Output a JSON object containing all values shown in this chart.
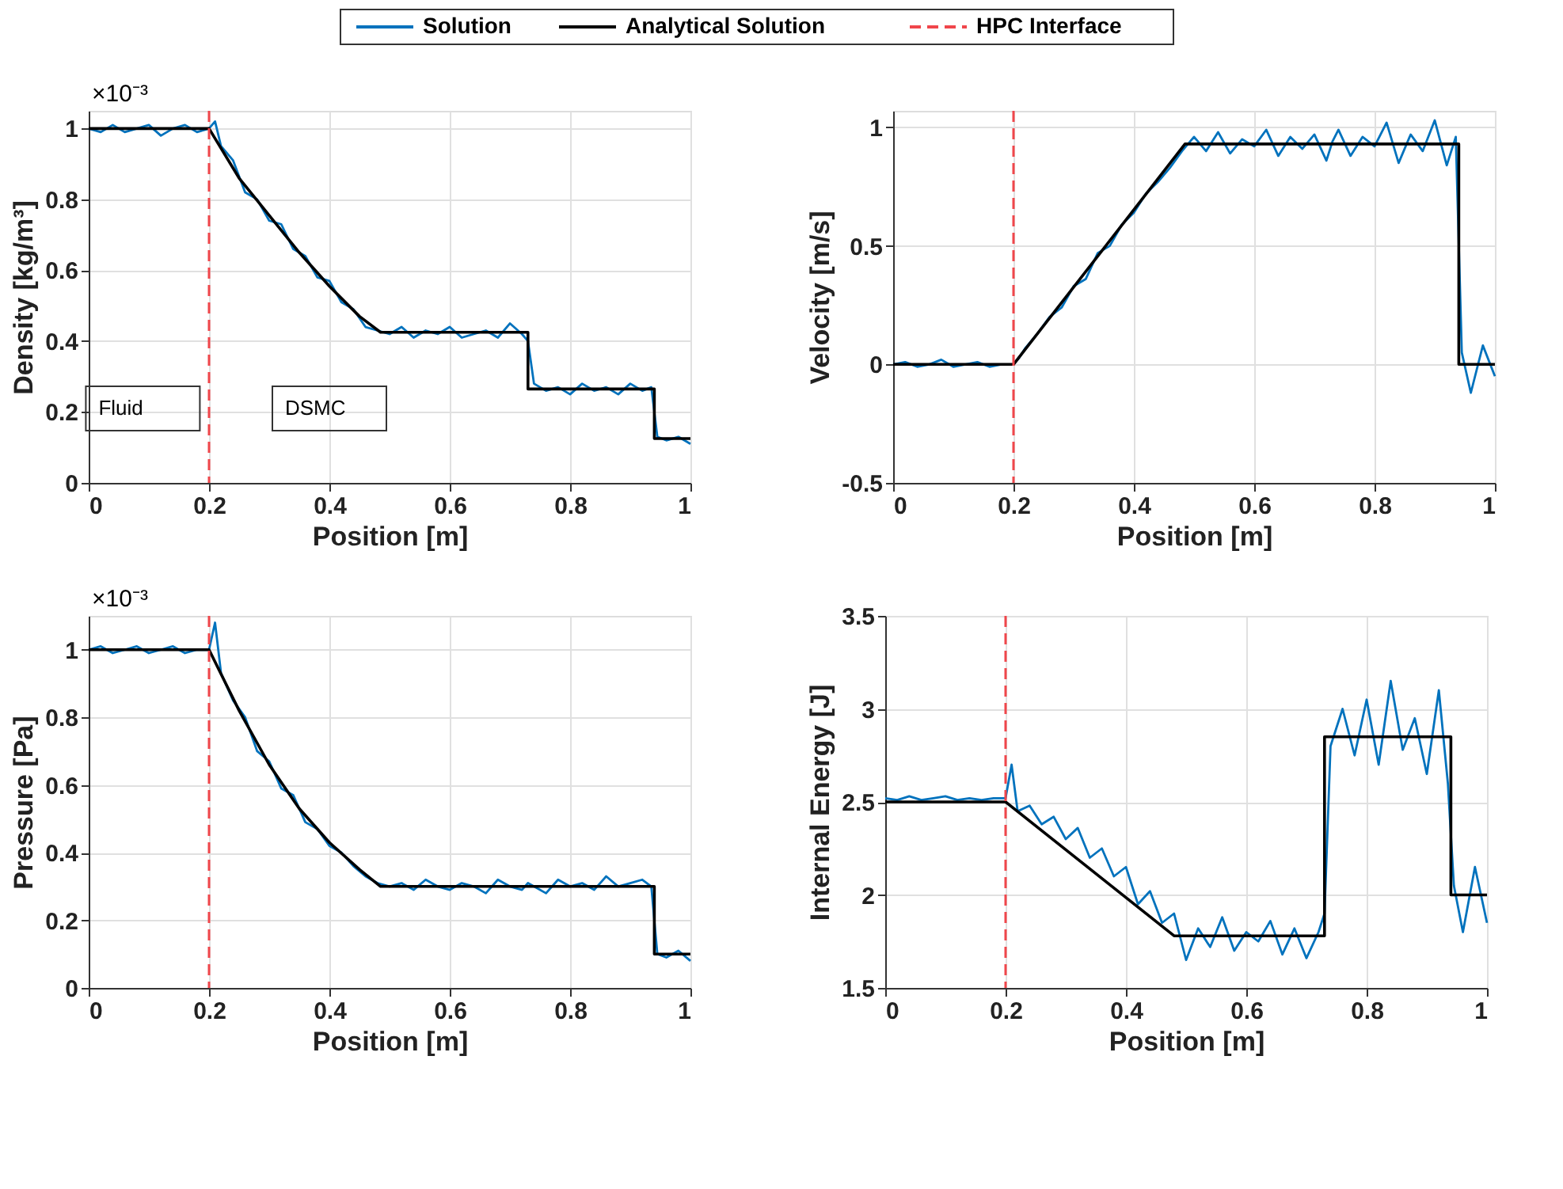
{
  "chart_data": [
    {
      "type": "line",
      "xlabel": "Position [m]",
      "ylabel": "Density [kg/m³]",
      "xlim": [
        0,
        1
      ],
      "xticks": [
        0,
        0.2,
        0.4,
        0.6,
        0.8,
        1
      ],
      "ylim": [
        0,
        1.05
      ],
      "yticks": [
        0,
        0.2,
        0.4,
        0.6,
        0.8,
        1
      ],
      "grid": true,
      "legend": "top",
      "annotations": [
        "×10⁻³",
        "Fluid",
        "DSMC"
      ],
      "ref_lines": [
        {
          "axis": "x",
          "value": 0.2,
          "label": "HPC Interface",
          "color": "#f0464b",
          "line_style": "dashed"
        }
      ],
      "series": [
        {
          "name": "Solution",
          "color": "#0072bd",
          "x": [
            0,
            0.02,
            0.04,
            0.06,
            0.08,
            0.1,
            0.12,
            0.14,
            0.16,
            0.18,
            0.2,
            0.21,
            0.22,
            0.24,
            0.26,
            0.28,
            0.3,
            0.32,
            0.34,
            0.36,
            0.38,
            0.4,
            0.42,
            0.44,
            0.46,
            0.48,
            0.5,
            0.52,
            0.54,
            0.56,
            0.58,
            0.6,
            0.62,
            0.64,
            0.66,
            0.68,
            0.7,
            0.72,
            0.73,
            0.74,
            0.76,
            0.78,
            0.8,
            0.82,
            0.84,
            0.86,
            0.88,
            0.9,
            0.92,
            0.935,
            0.945,
            0.96,
            0.98,
            1
          ],
          "values": [
            1.0,
            0.99,
            1.01,
            0.99,
            1.0,
            1.01,
            0.98,
            1.0,
            1.01,
            0.99,
            1.0,
            1.02,
            0.95,
            0.91,
            0.82,
            0.8,
            0.74,
            0.73,
            0.66,
            0.64,
            0.58,
            0.57,
            0.51,
            0.49,
            0.44,
            0.43,
            0.42,
            0.44,
            0.41,
            0.43,
            0.42,
            0.44,
            0.41,
            0.42,
            0.43,
            0.41,
            0.45,
            0.42,
            0.4,
            0.28,
            0.26,
            0.27,
            0.25,
            0.28,
            0.26,
            0.27,
            0.25,
            0.28,
            0.26,
            0.27,
            0.13,
            0.12,
            0.13,
            0.11
          ]
        },
        {
          "name": "Analytical Solution",
          "color": "#000000",
          "x": [
            0,
            0.2,
            0.25,
            0.3,
            0.35,
            0.4,
            0.45,
            0.485,
            0.73,
            0.73,
            0.94,
            0.94,
            1
          ],
          "values": [
            1.0,
            1.0,
            0.86,
            0.755,
            0.65,
            0.555,
            0.47,
            0.425,
            0.425,
            0.265,
            0.265,
            0.125,
            0.125
          ]
        }
      ]
    },
    {
      "type": "line",
      "xlabel": "Position [m]",
      "ylabel": "Velocity [m/s]",
      "xlim": [
        0,
        1
      ],
      "xticks": [
        0,
        0.2,
        0.4,
        0.6,
        0.8,
        1
      ],
      "ylim": [
        -0.5,
        1.07
      ],
      "yticks": [
        -0.5,
        0,
        0.5,
        1
      ],
      "grid": true,
      "ref_lines": [
        {
          "axis": "x",
          "value": 0.2,
          "color": "#f0464b",
          "line_style": "dashed"
        }
      ],
      "series": [
        {
          "name": "Solution",
          "color": "#0072bd",
          "x": [
            0,
            0.02,
            0.04,
            0.06,
            0.08,
            0.1,
            0.12,
            0.14,
            0.16,
            0.18,
            0.2,
            0.21,
            0.22,
            0.24,
            0.26,
            0.28,
            0.3,
            0.32,
            0.34,
            0.36,
            0.38,
            0.4,
            0.42,
            0.44,
            0.46,
            0.48,
            0.5,
            0.52,
            0.54,
            0.56,
            0.58,
            0.6,
            0.62,
            0.64,
            0.66,
            0.68,
            0.7,
            0.72,
            0.73,
            0.74,
            0.76,
            0.78,
            0.8,
            0.82,
            0.84,
            0.86,
            0.88,
            0.9,
            0.92,
            0.935,
            0.945,
            0.96,
            0.98,
            1
          ],
          "values": [
            0,
            0.01,
            -0.01,
            0,
            0.02,
            -0.01,
            0,
            0.01,
            -0.01,
            0,
            0,
            0.03,
            0.07,
            0.13,
            0.2,
            0.24,
            0.33,
            0.36,
            0.47,
            0.5,
            0.59,
            0.64,
            0.72,
            0.77,
            0.83,
            0.9,
            0.96,
            0.9,
            0.98,
            0.89,
            0.95,
            0.92,
            0.99,
            0.88,
            0.96,
            0.91,
            0.97,
            0.86,
            0.94,
            0.99,
            0.88,
            0.96,
            0.92,
            1.02,
            0.85,
            0.97,
            0.9,
            1.03,
            0.84,
            0.96,
            0.05,
            -0.12,
            0.08,
            -0.05
          ]
        },
        {
          "name": "Analytical Solution",
          "color": "#000000",
          "x": [
            0,
            0.2,
            0.485,
            0.94,
            0.94,
            1
          ],
          "values": [
            0,
            0,
            0.93,
            0.93,
            0,
            0
          ]
        }
      ]
    },
    {
      "type": "line",
      "xlabel": "Position [m]",
      "ylabel": "Pressure [Pa]",
      "xlim": [
        0,
        1
      ],
      "xticks": [
        0,
        0.2,
        0.4,
        0.6,
        0.8,
        1
      ],
      "ylim": [
        0,
        1.1
      ],
      "yticks": [
        0,
        0.2,
        0.4,
        0.6,
        0.8,
        1
      ],
      "grid": true,
      "annotations": [
        "×10⁻³"
      ],
      "ref_lines": [
        {
          "axis": "x",
          "value": 0.2,
          "color": "#f0464b",
          "line_style": "dashed"
        }
      ],
      "series": [
        {
          "name": "Solution",
          "color": "#0072bd",
          "x": [
            0,
            0.02,
            0.04,
            0.06,
            0.08,
            0.1,
            0.12,
            0.14,
            0.16,
            0.18,
            0.2,
            0.21,
            0.22,
            0.24,
            0.26,
            0.28,
            0.3,
            0.32,
            0.34,
            0.36,
            0.38,
            0.4,
            0.42,
            0.44,
            0.46,
            0.48,
            0.5,
            0.52,
            0.54,
            0.56,
            0.58,
            0.6,
            0.62,
            0.64,
            0.66,
            0.68,
            0.7,
            0.72,
            0.73,
            0.74,
            0.76,
            0.78,
            0.8,
            0.82,
            0.84,
            0.86,
            0.88,
            0.9,
            0.92,
            0.935,
            0.945,
            0.96,
            0.98,
            1
          ],
          "values": [
            1.0,
            1.01,
            0.99,
            1.0,
            1.01,
            0.99,
            1.0,
            1.01,
            0.99,
            1.0,
            1.0,
            1.08,
            0.93,
            0.85,
            0.8,
            0.7,
            0.67,
            0.59,
            0.57,
            0.49,
            0.47,
            0.42,
            0.4,
            0.36,
            0.33,
            0.31,
            0.3,
            0.31,
            0.29,
            0.32,
            0.3,
            0.29,
            0.31,
            0.3,
            0.28,
            0.32,
            0.3,
            0.29,
            0.31,
            0.3,
            0.28,
            0.32,
            0.3,
            0.31,
            0.29,
            0.33,
            0.3,
            0.31,
            0.32,
            0.3,
            0.1,
            0.09,
            0.11,
            0.08
          ]
        },
        {
          "name": "Analytical Solution",
          "color": "#000000",
          "x": [
            0,
            0.2,
            0.25,
            0.3,
            0.35,
            0.4,
            0.45,
            0.485,
            0.94,
            0.94,
            1
          ],
          "values": [
            1.0,
            1.0,
            0.82,
            0.66,
            0.53,
            0.43,
            0.35,
            0.3,
            0.3,
            0.1,
            0.1
          ]
        }
      ]
    },
    {
      "type": "line",
      "xlabel": "Position [m]",
      "ylabel": "Internal Energy [J]",
      "xlim": [
        0,
        1
      ],
      "xticks": [
        0,
        0.2,
        0.4,
        0.6,
        0.8,
        1
      ],
      "ylim": [
        1.5,
        3.5
      ],
      "yticks": [
        1.5,
        2,
        2.5,
        3,
        3.5
      ],
      "grid": true,
      "ref_lines": [
        {
          "axis": "x",
          "value": 0.2,
          "color": "#f0464b",
          "line_style": "dashed"
        }
      ],
      "series": [
        {
          "name": "Solution",
          "color": "#0072bd",
          "x": [
            0,
            0.02,
            0.04,
            0.06,
            0.08,
            0.1,
            0.12,
            0.14,
            0.16,
            0.18,
            0.2,
            0.21,
            0.22,
            0.24,
            0.26,
            0.28,
            0.3,
            0.32,
            0.34,
            0.36,
            0.38,
            0.4,
            0.42,
            0.44,
            0.46,
            0.48,
            0.5,
            0.52,
            0.54,
            0.56,
            0.58,
            0.6,
            0.62,
            0.64,
            0.66,
            0.68,
            0.7,
            0.72,
            0.73,
            0.74,
            0.76,
            0.78,
            0.8,
            0.82,
            0.84,
            0.86,
            0.88,
            0.9,
            0.92,
            0.935,
            0.945,
            0.96,
            0.98,
            1
          ],
          "values": [
            2.52,
            2.51,
            2.53,
            2.51,
            2.52,
            2.53,
            2.51,
            2.52,
            2.51,
            2.52,
            2.52,
            2.7,
            2.45,
            2.48,
            2.38,
            2.42,
            2.3,
            2.36,
            2.2,
            2.25,
            2.1,
            2.15,
            1.95,
            2.02,
            1.85,
            1.9,
            1.65,
            1.82,
            1.72,
            1.88,
            1.7,
            1.8,
            1.75,
            1.86,
            1.68,
            1.82,
            1.66,
            1.8,
            1.9,
            2.8,
            3.0,
            2.75,
            3.05,
            2.7,
            3.15,
            2.78,
            2.95,
            2.65,
            3.1,
            2.6,
            2.05,
            1.8,
            2.15,
            1.85
          ]
        },
        {
          "name": "Analytical Solution",
          "color": "#000000",
          "x": [
            0,
            0.2,
            0.48,
            0.73,
            0.73,
            0.94,
            0.94,
            1
          ],
          "values": [
            2.5,
            2.5,
            1.78,
            1.78,
            2.85,
            2.85,
            2.0,
            2.0
          ]
        }
      ]
    }
  ]
}
